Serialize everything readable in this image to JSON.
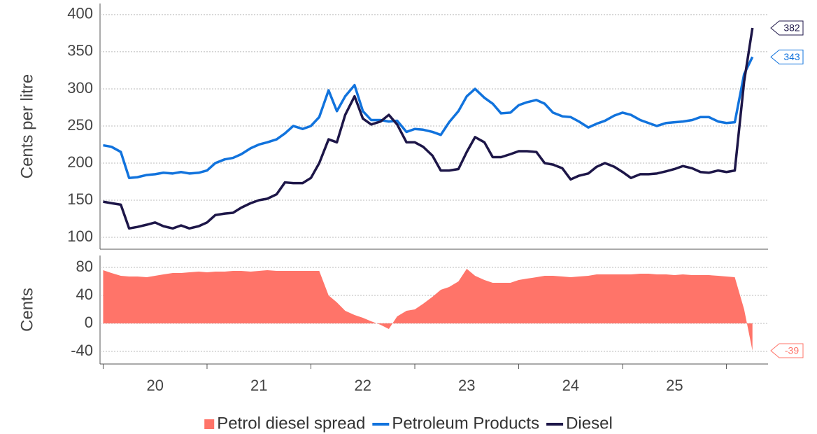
{
  "chart_data": [
    {
      "type": "line",
      "ylabel": "Cents per litre",
      "x": [
        2020.0,
        2020.08,
        2020.17,
        2020.25,
        2020.33,
        2020.42,
        2020.5,
        2020.58,
        2020.67,
        2020.75,
        2020.83,
        2020.92,
        2021.0,
        2021.08,
        2021.17,
        2021.25,
        2021.33,
        2021.42,
        2021.5,
        2021.58,
        2021.67,
        2021.75,
        2021.83,
        2021.92,
        2022.0,
        2022.08,
        2022.17,
        2022.25,
        2022.33,
        2022.42,
        2022.5,
        2022.58,
        2022.67,
        2022.75,
        2022.83,
        2022.92,
        2023.0,
        2023.08,
        2023.17,
        2023.25,
        2023.33,
        2023.42,
        2023.5,
        2023.58,
        2023.67,
        2023.75,
        2023.83,
        2023.92,
        2024.0,
        2024.08,
        2024.17,
        2024.25,
        2024.33,
        2024.42,
        2024.5,
        2024.58,
        2024.67,
        2024.75,
        2024.83,
        2024.92,
        2025.0,
        2025.08,
        2025.17,
        2025.25,
        2025.33,
        2025.42,
        2025.5,
        2025.58,
        2025.67,
        2025.75,
        2025.83,
        2025.92,
        2026.0,
        2026.08,
        2026.17,
        2026.25
      ],
      "series": [
        {
          "name": "Petroleum Products",
          "color": "#1173dd",
          "values": [
            224,
            222,
            215,
            180,
            181,
            184,
            185,
            187,
            186,
            188,
            186,
            187,
            190,
            200,
            205,
            207,
            212,
            220,
            225,
            228,
            232,
            240,
            250,
            246,
            250,
            262,
            298,
            270,
            290,
            305,
            270,
            258,
            258,
            256,
            257,
            242,
            246,
            245,
            242,
            238,
            255,
            270,
            290,
            300,
            288,
            280,
            267,
            268,
            278,
            282,
            285,
            280,
            268,
            263,
            262,
            256,
            248,
            253,
            257,
            264,
            268,
            265,
            258,
            254,
            250,
            254,
            255,
            256,
            258,
            262,
            262,
            256,
            254,
            255,
            320,
            343
          ]
        },
        {
          "name": "Diesel",
          "color": "#1d1648",
          "values": [
            148,
            146,
            144,
            112,
            114,
            117,
            120,
            115,
            112,
            116,
            112,
            115,
            120,
            130,
            132,
            133,
            140,
            146,
            150,
            152,
            158,
            174,
            173,
            173,
            180,
            200,
            232,
            228,
            265,
            290,
            260,
            252,
            256,
            265,
            252,
            228,
            228,
            222,
            210,
            190,
            190,
            192,
            215,
            235,
            228,
            208,
            208,
            212,
            216,
            216,
            215,
            200,
            198,
            193,
            178,
            183,
            186,
            195,
            200,
            195,
            188,
            180,
            185,
            185,
            186,
            189,
            192,
            196,
            193,
            188,
            187,
            190,
            188,
            190,
            310,
            382
          ]
        }
      ],
      "ylim": [
        84,
        415
      ],
      "yticks": [
        100,
        150,
        200,
        250,
        300,
        350,
        400
      ],
      "grid": true
    },
    {
      "type": "area",
      "ylabel": "Cents",
      "x": [
        2020.0,
        2020.08,
        2020.17,
        2020.25,
        2020.33,
        2020.42,
        2020.5,
        2020.58,
        2020.67,
        2020.75,
        2020.83,
        2020.92,
        2021.0,
        2021.08,
        2021.17,
        2021.25,
        2021.33,
        2021.42,
        2021.5,
        2021.58,
        2021.67,
        2021.75,
        2021.83,
        2021.92,
        2022.0,
        2022.08,
        2022.17,
        2022.25,
        2022.33,
        2022.42,
        2022.5,
        2022.58,
        2022.67,
        2022.75,
        2022.83,
        2022.92,
        2023.0,
        2023.08,
        2023.17,
        2023.25,
        2023.33,
        2023.42,
        2023.5,
        2023.58,
        2023.67,
        2023.75,
        2023.83,
        2023.92,
        2024.0,
        2024.08,
        2024.17,
        2024.25,
        2024.33,
        2024.42,
        2024.5,
        2024.58,
        2024.67,
        2024.75,
        2024.83,
        2024.92,
        2025.0,
        2025.08,
        2025.17,
        2025.25,
        2025.33,
        2025.42,
        2025.5,
        2025.58,
        2025.67,
        2025.75,
        2025.83,
        2025.92,
        2026.0,
        2026.08,
        2026.17,
        2026.25
      ],
      "series": [
        {
          "name": "Petrol diesel spread",
          "color": "#ff7469",
          "values": [
            76,
            72,
            68,
            67,
            67,
            66,
            68,
            70,
            72,
            72,
            73,
            74,
            73,
            74,
            74,
            75,
            75,
            74,
            75,
            76,
            75,
            75,
            75,
            75,
            75,
            75,
            40,
            30,
            18,
            12,
            8,
            3,
            -2,
            -8,
            10,
            18,
            20,
            28,
            38,
            48,
            52,
            60,
            78,
            68,
            62,
            58,
            58,
            58,
            62,
            64,
            66,
            68,
            68,
            67,
            66,
            67,
            68,
            70,
            70,
            70,
            70,
            70,
            71,
            71,
            70,
            70,
            69,
            70,
            69,
            69,
            69,
            68,
            67,
            66,
            20,
            -39
          ]
        }
      ],
      "ylim": [
        -58,
        97
      ],
      "yticks": [
        -40,
        0,
        40,
        80
      ],
      "grid": true,
      "xlim": [
        2019.97,
        2026.4
      ],
      "xticks": [
        2020,
        2021,
        2022,
        2023,
        2024,
        2025,
        2026
      ],
      "xlabels": [
        {
          "value": 2020.5,
          "label": "20"
        },
        {
          "value": 2021.5,
          "label": "21"
        },
        {
          "value": 2022.5,
          "label": "22"
        },
        {
          "value": 2023.5,
          "label": "23"
        },
        {
          "value": 2024.5,
          "label": "24"
        },
        {
          "value": 2025.5,
          "label": "25"
        }
      ]
    }
  ]
}
